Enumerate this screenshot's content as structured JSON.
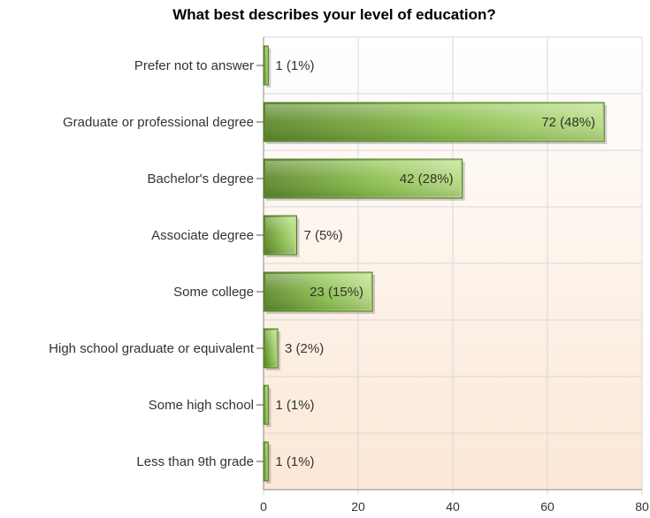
{
  "chart_data": {
    "type": "bar",
    "orientation": "horizontal",
    "title": "What best describes your level of education?",
    "categories": [
      "Prefer not to answer",
      "Graduate or professional degree",
      "Bachelor's degree",
      "Associate degree",
      "Some college",
      "High school graduate or equivalent",
      "Some high school",
      "Less than 9th grade"
    ],
    "values": [
      1,
      72,
      42,
      7,
      23,
      3,
      1,
      1
    ],
    "value_labels": [
      "1 (1%)",
      "72 (48%)",
      "42 (28%)",
      "7 (5%)",
      "23 (15%)",
      "3 (2%)",
      "1 (1%)",
      "1 (1%)"
    ],
    "xlim": [
      0,
      80
    ],
    "xticks": [
      0,
      20,
      40,
      60,
      80
    ],
    "grid": true,
    "legend": "none",
    "colors": {
      "bar_dark": "#5e8a2e",
      "bar_mid": "#8cc04f",
      "bar_light": "#b9dc86",
      "bar_edge": "#4a7324",
      "plot_bg_top": "#ffffff",
      "plot_bg_bottom": "#fbe7d6",
      "grid": "#d8d8d8"
    }
  }
}
